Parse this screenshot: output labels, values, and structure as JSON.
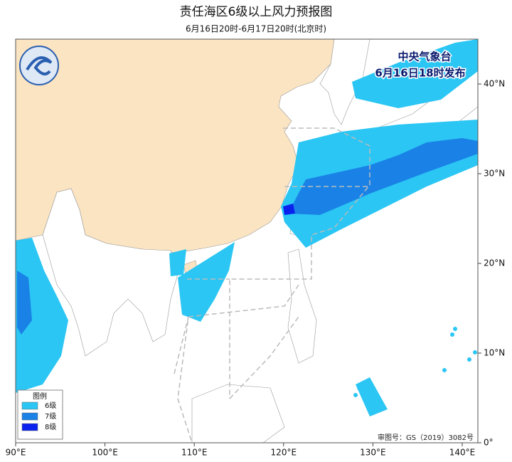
{
  "header": {
    "title": "责任海区6级以上风力预报图",
    "subtitle": "6月16日20时-6月17日20时(北京时)"
  },
  "issuer": {
    "name": "中央气象台",
    "time": "6月16日18时发布"
  },
  "legend": {
    "title": "图例",
    "items": [
      {
        "label": "6级",
        "color": "#2bc6f4"
      },
      {
        "label": "7级",
        "color": "#1a82e6"
      },
      {
        "label": "8级",
        "color": "#0b22ee"
      }
    ]
  },
  "approval": "审图号：GS（2019）3082号",
  "axes": {
    "lon": [
      "90°E",
      "100°E",
      "110°E",
      "120°E",
      "130°E",
      "140°E"
    ],
    "lat": [
      "0°",
      "10°N",
      "20°N",
      "30°N",
      "40°N"
    ]
  }
}
